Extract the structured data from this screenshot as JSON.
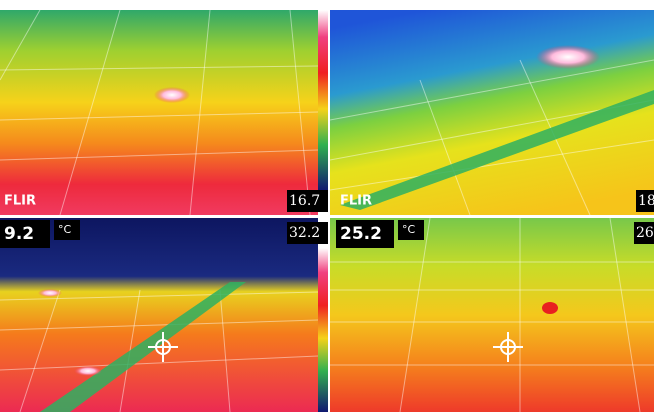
{
  "panels": [
    {
      "logo": "FLIR",
      "scale_value": "16.7"
    },
    {
      "logo": "FLIR",
      "scale_value": "18"
    },
    {
      "reading": "9.2",
      "unit": "°C",
      "scale_value": "32.2"
    },
    {
      "reading": "25.2",
      "unit": "°C",
      "scale_value": "26"
    }
  ]
}
